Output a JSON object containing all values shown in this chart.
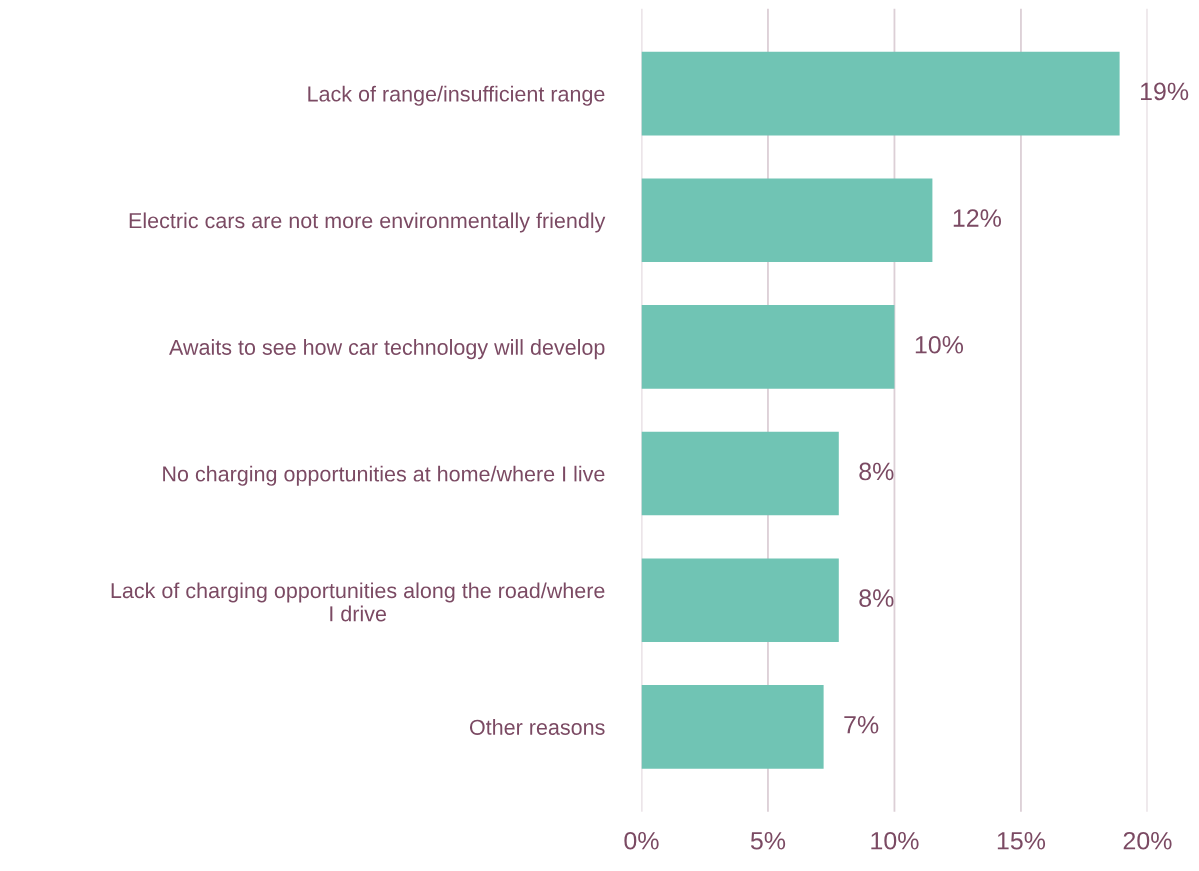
{
  "chart_data": {
    "type": "bar",
    "orientation": "horizontal",
    "categories": [
      "Lack of range/insufficient range",
      "Electric cars are not more environmentally friendly",
      "Awaits to see how car technology will develop",
      "No charging opportunities at home/where I live",
      "Lack of charging opportunities along the road/where\nI drive",
      "Other reasons"
    ],
    "values": [
      18.9,
      11.5,
      10.0,
      7.8,
      7.8,
      7.2
    ],
    "value_labels": [
      "19%",
      "12%",
      "10%",
      "8%",
      "8%",
      "7%"
    ],
    "color": "#70c4b4",
    "xlim": [
      0,
      20
    ],
    "xticks": [
      {
        "value": 0,
        "label": "0%"
      },
      {
        "value": 5,
        "label": "5%"
      },
      {
        "value": 10,
        "label": "10%"
      },
      {
        "value": 15,
        "label": "15%"
      },
      {
        "value": 20,
        "label": "20%"
      }
    ],
    "grid": "x"
  }
}
